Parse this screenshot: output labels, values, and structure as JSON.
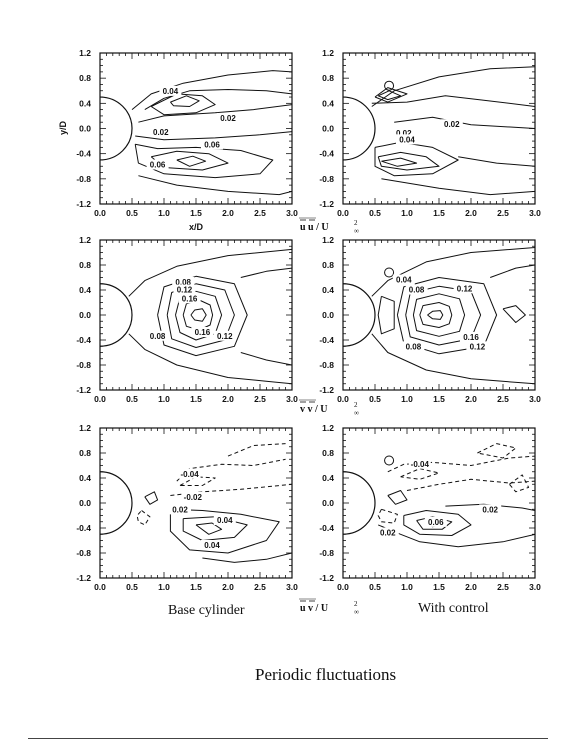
{
  "figure_title": "Periodic fluctuations",
  "column_captions": {
    "left": "Base cylinder",
    "right": "With control"
  },
  "row_quantities": [
    "uu",
    "vv",
    "uv"
  ],
  "x_axis_label": "x/D",
  "y_axis_label": "y/D",
  "norm_label": "/ U",
  "colors": {
    "ink": "#111111",
    "background": "#ffffff"
  },
  "chart_data": [
    {
      "type": "contour",
      "row": 1,
      "column": "left",
      "quantity": "uu",
      "xlim": [
        0.0,
        3.0
      ],
      "ylim": [
        -1.2,
        1.2
      ],
      "xticks": [
        "0.0",
        "0.5",
        "1.0",
        "1.5",
        "2.0",
        "2.5",
        "3.0"
      ],
      "yticks": [
        "1.2",
        "0.8",
        "0.4",
        "0.0",
        "-0.4",
        "-0.8",
        "-1.2"
      ],
      "xlabel": "x/D",
      "ylabel": "y/D",
      "contour_labels": [
        {
          "text": "0.04",
          "x": 1.1,
          "y": 0.55
        },
        {
          "text": "0.02",
          "x": 2.0,
          "y": 0.12
        },
        {
          "text": "0.02",
          "x": 0.95,
          "y": -0.1
        },
        {
          "text": "0.06",
          "x": 1.75,
          "y": -0.3
        },
        {
          "text": "0.06",
          "x": 0.9,
          "y": -0.62
        }
      ]
    },
    {
      "type": "contour",
      "row": 1,
      "column": "right",
      "quantity": "uu",
      "xlim": [
        0.0,
        3.0
      ],
      "ylim": [
        -1.2,
        1.2
      ],
      "xticks": [
        "0.0",
        "0.5",
        "1.0",
        "1.5",
        "2.0",
        "2.5",
        "3.0"
      ],
      "yticks": [
        "1.2",
        "0.8",
        "0.4",
        "0.0",
        "-0.4",
        "-0.8",
        "-1.2"
      ],
      "contour_labels": [
        {
          "text": "0.02",
          "x": 1.7,
          "y": 0.02
        },
        {
          "text": "0.02",
          "x": 0.95,
          "y": -0.12
        },
        {
          "text": "0.04",
          "x": 1.0,
          "y": -0.22
        }
      ]
    },
    {
      "type": "contour",
      "row": 2,
      "column": "left",
      "quantity": "vv",
      "xlim": [
        0.0,
        3.0
      ],
      "ylim": [
        -1.2,
        1.2
      ],
      "xticks": [
        "0.0",
        "0.5",
        "1.0",
        "1.5",
        "2.0",
        "2.5",
        "3.0"
      ],
      "yticks": [
        "1.2",
        "0.8",
        "0.4",
        "0.0",
        "-0.4",
        "-0.8",
        "-1.2"
      ],
      "contour_labels": [
        {
          "text": "0.08",
          "x": 1.3,
          "y": 0.48
        },
        {
          "text": "0.12",
          "x": 1.32,
          "y": 0.36
        },
        {
          "text": "0.16",
          "x": 1.4,
          "y": 0.22
        },
        {
          "text": "0.16",
          "x": 1.6,
          "y": -0.32
        },
        {
          "text": "0.12",
          "x": 1.95,
          "y": -0.38
        },
        {
          "text": "0.08",
          "x": 0.9,
          "y": -0.38
        }
      ]
    },
    {
      "type": "contour",
      "row": 2,
      "column": "right",
      "quantity": "vv",
      "xlim": [
        0.0,
        3.0
      ],
      "ylim": [
        -1.2,
        1.2
      ],
      "xticks": [
        "0.0",
        "0.5",
        "1.0",
        "1.5",
        "2.0",
        "2.5",
        "3.0"
      ],
      "yticks": [
        "1.2",
        "0.8",
        "0.4",
        "0.0",
        "-0.4",
        "-0.8",
        "-1.2"
      ],
      "contour_labels": [
        {
          "text": "0.04",
          "x": 0.95,
          "y": 0.52
        },
        {
          "text": "0.08",
          "x": 1.15,
          "y": 0.36
        },
        {
          "text": "0.12",
          "x": 1.9,
          "y": 0.38
        },
        {
          "text": "0.16",
          "x": 2.0,
          "y": -0.4
        },
        {
          "text": "0.12",
          "x": 2.1,
          "y": -0.55
        },
        {
          "text": "0.08",
          "x": 1.1,
          "y": -0.55
        }
      ]
    },
    {
      "type": "contour",
      "row": 3,
      "column": "left",
      "quantity": "uv",
      "xlim": [
        0.0,
        3.0
      ],
      "ylim": [
        -1.2,
        1.2
      ],
      "xticks": [
        "0.0",
        "0.5",
        "1.0",
        "1.5",
        "2.0",
        "2.5",
        "3.0"
      ],
      "yticks": [
        "1.2",
        "0.8",
        "0.4",
        "0.0",
        "-0.4",
        "-0.8",
        "-1.2"
      ],
      "contour_labels": [
        {
          "text": "-0.04",
          "x": 1.4,
          "y": 0.42
        },
        {
          "text": "-0.02",
          "x": 1.45,
          "y": 0.05
        },
        {
          "text": "0.02",
          "x": 1.25,
          "y": -0.15
        },
        {
          "text": "0.04",
          "x": 1.95,
          "y": -0.32
        },
        {
          "text": "0.04",
          "x": 1.75,
          "y": -0.72
        }
      ]
    },
    {
      "type": "contour",
      "row": 3,
      "column": "right",
      "quantity": "uv",
      "xlim": [
        0.0,
        3.0
      ],
      "ylim": [
        -1.2,
        1.2
      ],
      "xticks": [
        "0.0",
        "0.5",
        "1.0",
        "1.5",
        "2.0",
        "2.5",
        "3.0"
      ],
      "yticks": [
        "1.2",
        "0.8",
        "0.4",
        "0.0",
        "-0.4",
        "-0.8",
        "-1.2"
      ],
      "contour_labels": [
        {
          "text": "-0.04",
          "x": 1.2,
          "y": 0.58
        },
        {
          "text": "0.02",
          "x": 2.3,
          "y": -0.15
        },
        {
          "text": "0.06",
          "x": 1.45,
          "y": -0.35
        },
        {
          "text": "0.02",
          "x": 0.7,
          "y": -0.52
        }
      ]
    }
  ]
}
